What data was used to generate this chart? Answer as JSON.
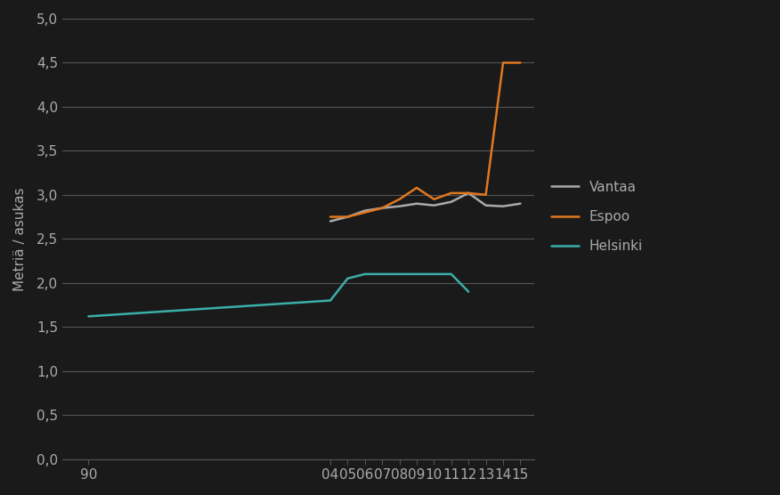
{
  "vantaa_x": [
    2004,
    2005,
    2006,
    2007,
    2008,
    2009,
    2010,
    2011,
    2012,
    2013,
    2014,
    2015
  ],
  "vantaa_y": [
    2.7,
    2.75,
    2.82,
    2.85,
    2.87,
    2.9,
    2.88,
    2.92,
    3.02,
    2.88,
    2.87,
    2.9
  ],
  "espoo_x": [
    2004,
    2005,
    2006,
    2007,
    2008,
    2009,
    2010,
    2011,
    2012,
    2013,
    2014,
    2015
  ],
  "espoo_y": [
    2.75,
    2.75,
    2.8,
    2.85,
    2.95,
    3.08,
    2.95,
    3.02,
    3.02,
    3.0,
    4.5,
    4.5
  ],
  "helsinki_x": [
    1990,
    2004,
    2005,
    2006,
    2007,
    2008,
    2009,
    2010,
    2011,
    2012
  ],
  "helsinki_y": [
    1.62,
    1.8,
    2.05,
    2.1,
    2.1,
    2.1,
    2.1,
    2.1,
    2.1,
    1.9
  ],
  "vantaa_color": "#aaaaaa",
  "espoo_color": "#E07820",
  "helsinki_color": "#3AAFA9",
  "ylabel": "Metriä / asukas",
  "ylim": [
    0.0,
    5.0
  ],
  "yticks": [
    0.0,
    0.5,
    1.0,
    1.5,
    2.0,
    2.5,
    3.0,
    3.5,
    4.0,
    4.5,
    5.0
  ],
  "xticks": [
    1990,
    2004,
    2005,
    2006,
    2007,
    2008,
    2009,
    2010,
    2011,
    2012,
    2013,
    2014,
    2015
  ],
  "xticklabels": [
    "90",
    "04",
    "05",
    "06",
    "07",
    "08",
    "09",
    "10",
    "11",
    "12",
    "13",
    "14",
    "15"
  ],
  "xlim": [
    1988.5,
    2015.8
  ],
  "background_color": "#1a1a1a",
  "grid_color": "#555555",
  "tick_color": "#aaaaaa",
  "text_color": "#aaaaaa",
  "line_width": 1.8,
  "legend_labels": [
    "Vantaa",
    "Espoo",
    "Helsinki"
  ]
}
